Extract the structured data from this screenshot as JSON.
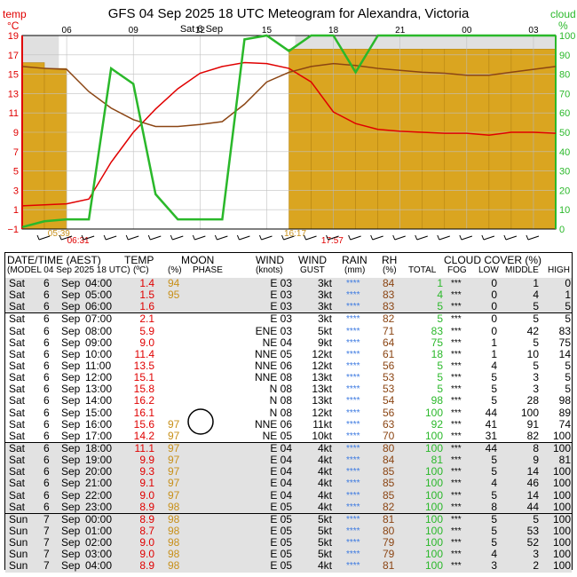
{
  "chart_data": {
    "type": "line",
    "title": "GFS  04 Sep 2025 18 UTC  Meteogram for Alexandra, Victoria",
    "date_label": "Sat 6 Sep",
    "ylabel_left": "temp",
    "ylabel_left_unit": "°C",
    "ylabel_right": "cloud",
    "ylabel_right_unit": "%",
    "ylim_left": [
      -1,
      19
    ],
    "yticks_left": [
      "19",
      "17",
      "15",
      "13",
      "11",
      "9",
      "7",
      "5",
      "3",
      "1",
      "−1"
    ],
    "ylim_right": [
      0,
      100
    ],
    "yticks_right": [
      "100",
      "90",
      "80",
      "70",
      "60",
      "50",
      "40",
      "30",
      "20",
      "10",
      "0"
    ],
    "x_ticks": [
      "06",
      "09",
      "12",
      "15",
      "18",
      "21",
      "00",
      "03"
    ],
    "x_tick_hours": [
      6,
      9,
      12,
      15,
      18,
      21,
      24,
      27
    ],
    "x_range_hours": [
      4,
      28
    ],
    "sunrise": "05:39",
    "moonset": "06:31",
    "sunset": "16:17",
    "moonrise": "17:57",
    "sunrise_h": 5.65,
    "moonset_h": 6.52,
    "sunset_h": 16.28,
    "moonrise_h": 17.95,
    "hours": [
      4,
      5,
      6,
      7,
      8,
      9,
      10,
      11,
      12,
      13,
      14,
      15,
      16,
      17,
      18,
      19,
      20,
      21,
      22,
      23,
      24,
      25,
      26,
      27,
      28
    ],
    "series": [
      {
        "name": "temp",
        "color": "#e00000",
        "values": [
          1.4,
          1.5,
          1.6,
          2.1,
          5.9,
          9.0,
          11.4,
          13.5,
          15.1,
          15.8,
          16.2,
          16.1,
          15.6,
          14.2,
          11.1,
          9.9,
          9.3,
          9.1,
          9.0,
          8.9,
          8.9,
          8.7,
          9.0,
          9.0,
          8.9
        ]
      },
      {
        "name": "dew point",
        "color": "#8b4513",
        "values": [
          15.8,
          15.6,
          15.5,
          13.2,
          11.5,
          10.3,
          9.6,
          9.6,
          9.8,
          10.1,
          11.9,
          14.2,
          15.2,
          15.8,
          16.1,
          15.9,
          15.6,
          15.4,
          15.2,
          15.1,
          14.9,
          14.9,
          15.2,
          15.5,
          15.8
        ]
      },
      {
        "name": "total cloud",
        "color": "#2ab82a",
        "values": [
          1,
          4,
          5,
          5,
          83,
          75,
          18,
          5,
          5,
          5,
          98,
          100,
          92,
          100,
          100,
          81,
          100,
          100,
          100,
          100,
          100,
          100,
          100,
          100,
          100
        ]
      }
    ],
    "bg_cloud_percent": [
      86,
      83,
      0,
      0,
      0,
      0,
      0,
      0,
      0,
      0,
      0,
      0,
      93,
      93,
      93,
      93,
      93,
      93,
      93,
      93,
      93,
      93,
      93,
      93,
      93
    ]
  },
  "table": {
    "headers": {
      "datetime": "DATE/TIME (AEST)",
      "model": "(MODEL 04 Sep 2025 18 UTC)",
      "temp": "TEMP",
      "temp_unit": "(ºC)",
      "moon": "MOON",
      "moon_pct": "(%)",
      "moon_phase": "PHASE",
      "wind": "WIND",
      "wind_unit": "(knots)",
      "gust": "WIND",
      "gust_label": "GUST",
      "rain": "RAIN",
      "rain_unit": "(mm)",
      "rh": "RH",
      "rh_unit": "(%)",
      "cloud": "CLOUD COVER (%)",
      "total": "TOTAL",
      "fog": "FOG",
      "low": "LOW",
      "middle": "MIDDLE",
      "high": "HIGH"
    },
    "rows": [
      [
        "Sat",
        "6",
        "Sep",
        "04:00",
        "1.4",
        "94",
        "E 03",
        "3kt",
        "****",
        "84",
        "1",
        "***",
        "0",
        "1",
        "0"
      ],
      [
        "Sat",
        "6",
        "Sep",
        "05:00",
        "1.5",
        "95",
        "E 03",
        "3kt",
        "****",
        "83",
        "4",
        "***",
        "0",
        "4",
        "1"
      ],
      [
        "Sat",
        "6",
        "Sep",
        "06:00",
        "1.6",
        "",
        "E 03",
        "3kt",
        "****",
        "83",
        "5",
        "***",
        "0",
        "5",
        "5"
      ],
      [
        "Sat",
        "6",
        "Sep",
        "07:00",
        "2.1",
        "",
        "E 03",
        "3kt",
        "****",
        "82",
        "5",
        "***",
        "0",
        "5",
        "5"
      ],
      [
        "Sat",
        "6",
        "Sep",
        "08:00",
        "5.9",
        "",
        "ENE 03",
        "5kt",
        "****",
        "71",
        "83",
        "***",
        "0",
        "42",
        "83"
      ],
      [
        "Sat",
        "6",
        "Sep",
        "09:00",
        "9.0",
        "",
        "NE 04",
        "9kt",
        "****",
        "64",
        "75",
        "***",
        "1",
        "5",
        "75"
      ],
      [
        "Sat",
        "6",
        "Sep",
        "10:00",
        "11.4",
        "",
        "NNE 05",
        "12kt",
        "****",
        "61",
        "18",
        "***",
        "1",
        "10",
        "14"
      ],
      [
        "Sat",
        "6",
        "Sep",
        "11:00",
        "13.5",
        "",
        "NNE 06",
        "12kt",
        "****",
        "56",
        "5",
        "***",
        "4",
        "5",
        "5"
      ],
      [
        "Sat",
        "6",
        "Sep",
        "12:00",
        "15.1",
        "",
        "NNE 08",
        "13kt",
        "****",
        "53",
        "5",
        "***",
        "5",
        "3",
        "5"
      ],
      [
        "Sat",
        "6",
        "Sep",
        "13:00",
        "15.8",
        "",
        "N 08",
        "13kt",
        "****",
        "53",
        "5",
        "***",
        "5",
        "3",
        "5"
      ],
      [
        "Sat",
        "6",
        "Sep",
        "14:00",
        "16.2",
        "",
        "N 08",
        "13kt",
        "****",
        "54",
        "98",
        "***",
        "5",
        "28",
        "98"
      ],
      [
        "Sat",
        "6",
        "Sep",
        "15:00",
        "16.1",
        "",
        "N 08",
        "12kt",
        "****",
        "56",
        "100",
        "***",
        "44",
        "100",
        "89"
      ],
      [
        "Sat",
        "6",
        "Sep",
        "16:00",
        "15.6",
        "97",
        "NNE 06",
        "11kt",
        "****",
        "63",
        "92",
        "***",
        "41",
        "91",
        "74"
      ],
      [
        "Sat",
        "6",
        "Sep",
        "17:00",
        "14.2",
        "97",
        "NE 05",
        "10kt",
        "****",
        "70",
        "100",
        "***",
        "31",
        "82",
        "100"
      ],
      [
        "Sat",
        "6",
        "Sep",
        "18:00",
        "11.1",
        "97",
        "E 04",
        "4kt",
        "****",
        "80",
        "100",
        "***",
        "44",
        "8",
        "100"
      ],
      [
        "Sat",
        "6",
        "Sep",
        "19:00",
        "9.9",
        "97",
        "E 04",
        "4kt",
        "****",
        "84",
        "81",
        "***",
        "5",
        "9",
        "81"
      ],
      [
        "Sat",
        "6",
        "Sep",
        "20:00",
        "9.3",
        "97",
        "E 04",
        "4kt",
        "****",
        "85",
        "100",
        "***",
        "5",
        "14",
        "100"
      ],
      [
        "Sat",
        "6",
        "Sep",
        "21:00",
        "9.1",
        "97",
        "E 04",
        "4kt",
        "****",
        "85",
        "100",
        "***",
        "4",
        "46",
        "100"
      ],
      [
        "Sat",
        "6",
        "Sep",
        "22:00",
        "9.0",
        "97",
        "E 04",
        "4kt",
        "****",
        "85",
        "100",
        "***",
        "5",
        "14",
        "100"
      ],
      [
        "Sat",
        "6",
        "Sep",
        "23:00",
        "8.9",
        "98",
        "E 05",
        "4kt",
        "****",
        "82",
        "100",
        "***",
        "8",
        "44",
        "100"
      ],
      [
        "Sun",
        "7",
        "Sep",
        "00:00",
        "8.9",
        "98",
        "E 05",
        "5kt",
        "****",
        "81",
        "100",
        "***",
        "5",
        "5",
        "100"
      ],
      [
        "Sun",
        "7",
        "Sep",
        "01:00",
        "8.7",
        "98",
        "E 05",
        "5kt",
        "****",
        "80",
        "100",
        "***",
        "5",
        "53",
        "100"
      ],
      [
        "Sun",
        "7",
        "Sep",
        "02:00",
        "9.0",
        "98",
        "E 05",
        "5kt",
        "****",
        "79",
        "100",
        "***",
        "5",
        "52",
        "100"
      ],
      [
        "Sun",
        "7",
        "Sep",
        "03:00",
        "9.0",
        "98",
        "E 05",
        "5kt",
        "****",
        "79",
        "100",
        "***",
        "4",
        "3",
        "100"
      ],
      [
        "Sun",
        "7",
        "Sep",
        "04:00",
        "8.9",
        "98",
        "E 05",
        "4kt",
        "****",
        "81",
        "100",
        "***",
        "3",
        "2",
        "100"
      ]
    ]
  },
  "colors": {
    "temp": "#e00000",
    "dew": "#8b4513",
    "cloud": "#2ab82a",
    "cloud_fill": "#daa520",
    "night": "#e0e0e0",
    "moon": "#c8901a",
    "rain": "#3a78e0"
  }
}
